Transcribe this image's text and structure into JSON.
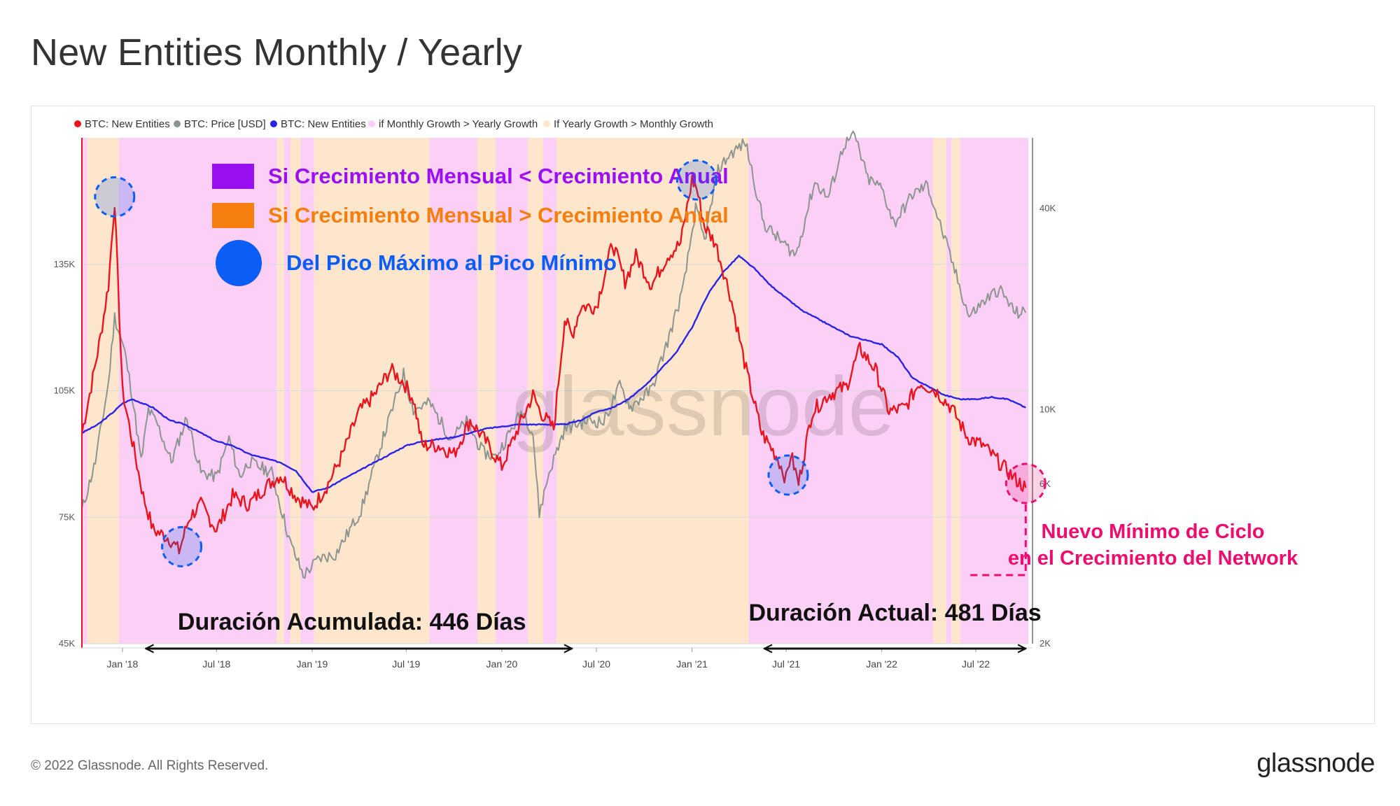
{
  "header": {
    "title": "New Entities Monthly / Yearly"
  },
  "footer": {
    "copyright": "© 2022 Glassnode. All Rights Reserved.",
    "logo": "glassnode"
  },
  "colors": {
    "new_entities_red": "#e8141e",
    "price_grey": "#8c9490",
    "new_entities_blue": "#2a22e6",
    "monthly_gt_yearly_pink": "#fbcff6",
    "yearly_gt_monthly_peach": "#fde6cc",
    "purple_label": "#9b10f2",
    "orange_label": "#f57e0f",
    "blue_label": "#0a5df5",
    "magenta_note": "#ee0c6e"
  },
  "chart_data": {
    "type": "line",
    "title": "New Entities Monthly / Yearly",
    "watermark": "glassnode",
    "legend": {
      "placement": "top-left",
      "entries": [
        {
          "label": "BTC: New Entities",
          "color": "#e8141e"
        },
        {
          "label": "BTC: Price [USD]",
          "color": "#8c9490"
        },
        {
          "label": "BTC: New Entities",
          "color": "#2a22e6"
        },
        {
          "label": "if Monthly Growth > Yearly Growth",
          "color": "#fbcff6"
        },
        {
          "label": "If Yearly Growth > Monthly Growth",
          "color": "#fde6cc"
        }
      ]
    },
    "x_axis": {
      "start": "2017-10-15",
      "end": "2022-10-10",
      "ticks": [
        {
          "date": "2018-01-01",
          "label": "Jan '18"
        },
        {
          "date": "2018-07-01",
          "label": "Jul '18"
        },
        {
          "date": "2019-01-01",
          "label": "Jan '19"
        },
        {
          "date": "2019-07-01",
          "label": "Jul '19"
        },
        {
          "date": "2020-01-01",
          "label": "Jan '20"
        },
        {
          "date": "2020-07-01",
          "label": "Jul '20"
        },
        {
          "date": "2021-01-01",
          "label": "Jan '21"
        },
        {
          "date": "2021-07-01",
          "label": "Jul '21"
        },
        {
          "date": "2022-01-01",
          "label": "Jan '22"
        },
        {
          "date": "2022-07-01",
          "label": "Jul '22"
        }
      ]
    },
    "y_left": {
      "range": [
        45000,
        165000
      ],
      "ticks": [
        {
          "value": 45000,
          "label": "45K"
        },
        {
          "value": 75000,
          "label": "75K"
        },
        {
          "value": 105000,
          "label": "105K"
        },
        {
          "value": 135000,
          "label": "135K"
        }
      ]
    },
    "y_right": {
      "scale": "log",
      "range": [
        2000,
        65000
      ],
      "ticks": [
        {
          "value": 2000,
          "label": "2K"
        },
        {
          "value": 6000,
          "label": "6K"
        },
        {
          "value": 10000,
          "label": "10K"
        },
        {
          "value": 40000,
          "label": "40K"
        }
      ]
    },
    "regime_bands": [
      {
        "start": "2017-10-15",
        "end": "2017-10-25",
        "regime": "monthly"
      },
      {
        "start": "2017-10-25",
        "end": "2017-12-25",
        "regime": "yearly"
      },
      {
        "start": "2017-12-25",
        "end": "2018-10-25",
        "regime": "monthly"
      },
      {
        "start": "2018-10-25",
        "end": "2018-11-08",
        "regime": "yearly"
      },
      {
        "start": "2018-11-08",
        "end": "2018-11-20",
        "regime": "monthly"
      },
      {
        "start": "2018-11-20",
        "end": "2018-12-10",
        "regime": "yearly"
      },
      {
        "start": "2018-12-10",
        "end": "2019-01-05",
        "regime": "monthly"
      },
      {
        "start": "2019-01-05",
        "end": "2019-08-15",
        "regime": "yearly"
      },
      {
        "start": "2019-08-15",
        "end": "2019-11-15",
        "regime": "monthly"
      },
      {
        "start": "2019-11-15",
        "end": "2019-12-20",
        "regime": "yearly"
      },
      {
        "start": "2019-12-20",
        "end": "2020-02-20",
        "regime": "monthly"
      },
      {
        "start": "2020-02-20",
        "end": "2020-03-20",
        "regime": "yearly"
      },
      {
        "start": "2020-03-20",
        "end": "2020-04-15",
        "regime": "monthly"
      },
      {
        "start": "2020-04-15",
        "end": "2021-04-20",
        "regime": "yearly"
      },
      {
        "start": "2021-04-20",
        "end": "2022-04-10",
        "regime": "monthly"
      },
      {
        "start": "2022-04-10",
        "end": "2022-05-05",
        "regime": "yearly"
      },
      {
        "start": "2022-05-05",
        "end": "2022-05-15",
        "regime": "monthly"
      },
      {
        "start": "2022-05-15",
        "end": "2022-06-01",
        "regime": "yearly"
      },
      {
        "start": "2022-06-01",
        "end": "2022-10-10",
        "regime": "monthly"
      }
    ],
    "series": [
      {
        "name": "BTC: New Entities",
        "axis": "left",
        "color": "#e8141e",
        "x": [
          "2017-10-15",
          "2017-11-05",
          "2017-11-20",
          "2017-12-05",
          "2017-12-17",
          "2018-01-01",
          "2018-01-20",
          "2018-02-10",
          "2018-03-01",
          "2018-04-01",
          "2018-04-20",
          "2018-05-10",
          "2018-06-01",
          "2018-07-01",
          "2018-08-01",
          "2018-09-01",
          "2018-10-01",
          "2018-11-01",
          "2018-12-01",
          "2019-01-01",
          "2019-02-01",
          "2019-03-01",
          "2019-04-01",
          "2019-05-01",
          "2019-06-01",
          "2019-06-26",
          "2019-07-15",
          "2019-08-01",
          "2019-09-01",
          "2019-10-01",
          "2019-11-01",
          "2019-12-01",
          "2020-01-01",
          "2020-02-01",
          "2020-03-01",
          "2020-03-15",
          "2020-04-10",
          "2020-05-01",
          "2020-05-15",
          "2020-06-01",
          "2020-07-01",
          "2020-08-01",
          "2020-08-25",
          "2020-09-15",
          "2020-10-15",
          "2020-11-15",
          "2020-12-10",
          "2021-01-01",
          "2021-01-10",
          "2021-01-25",
          "2021-02-15",
          "2021-03-15",
          "2021-04-15",
          "2021-05-15",
          "2021-06-15",
          "2021-07-01",
          "2021-07-10",
          "2021-07-25",
          "2021-08-20",
          "2021-09-20",
          "2021-10-25",
          "2021-11-20",
          "2021-12-20",
          "2022-01-15",
          "2022-02-15",
          "2022-03-15",
          "2022-04-15",
          "2022-05-15",
          "2022-06-15",
          "2022-07-15",
          "2022-08-15",
          "2022-09-15",
          "2022-10-05"
        ],
        "values": [
          95000,
          108000,
          118000,
          130000,
          150000,
          105000,
          93000,
          80000,
          72000,
          70000,
          67000,
          75000,
          78000,
          72000,
          80000,
          78000,
          82000,
          85000,
          80000,
          77000,
          83000,
          90000,
          100000,
          104000,
          110000,
          107000,
          103000,
          92000,
          92000,
          90000,
          98000,
          93000,
          87000,
          96000,
          104000,
          100000,
          96000,
          122000,
          118000,
          125000,
          125000,
          140000,
          131000,
          137000,
          130000,
          137000,
          140000,
          155000,
          153000,
          144000,
          140000,
          128000,
          110000,
          95000,
          89000,
          84000,
          90000,
          83000,
          100000,
          104000,
          106000,
          115000,
          110000,
          100000,
          101000,
          107000,
          105000,
          101000,
          94000,
          92000,
          88000,
          84000,
          82000
        ]
      },
      {
        "name": "BTC: Price [USD]",
        "axis": "right",
        "color": "#8c9490",
        "x": [
          "2017-10-15",
          "2017-11-10",
          "2017-12-05",
          "2017-12-17",
          "2018-01-05",
          "2018-01-20",
          "2018-02-06",
          "2018-02-20",
          "2018-03-10",
          "2018-04-05",
          "2018-05-05",
          "2018-06-01",
          "2018-07-01",
          "2018-07-25",
          "2018-08-15",
          "2018-09-01",
          "2018-10-15",
          "2018-11-20",
          "2018-12-15",
          "2019-01-15",
          "2019-02-15",
          "2019-04-05",
          "2019-05-15",
          "2019-06-26",
          "2019-07-15",
          "2019-08-15",
          "2019-09-25",
          "2019-10-25",
          "2019-11-25",
          "2019-12-20",
          "2020-02-10",
          "2020-03-01",
          "2020-03-13",
          "2020-04-01",
          "2020-05-01",
          "2020-06-15",
          "2020-07-15",
          "2020-08-15",
          "2020-09-05",
          "2020-10-15",
          "2020-11-15",
          "2020-12-15",
          "2021-01-08",
          "2021-01-25",
          "2021-02-20",
          "2021-03-15",
          "2021-04-14",
          "2021-05-19",
          "2021-06-20",
          "2021-07-20",
          "2021-08-25",
          "2021-09-20",
          "2021-10-20",
          "2021-11-10",
          "2021-12-05",
          "2022-01-01",
          "2022-01-25",
          "2022-03-01",
          "2022-03-30",
          "2022-05-12",
          "2022-06-18",
          "2022-07-15",
          "2022-08-15",
          "2022-09-15",
          "2022-10-05"
        ],
        "values": [
          5000,
          7000,
          12000,
          19000,
          15000,
          11000,
          7000,
          10000,
          9000,
          7000,
          9500,
          6500,
          6300,
          8200,
          6300,
          7000,
          6500,
          4000,
          3200,
          3600,
          3700,
          5000,
          8000,
          12800,
          10000,
          10500,
          8200,
          9200,
          7500,
          7200,
          10000,
          8500,
          4900,
          6500,
          8800,
          9300,
          9200,
          11800,
          10200,
          11500,
          16000,
          23000,
          40000,
          32000,
          52000,
          58000,
          63000,
          36000,
          32000,
          29000,
          48000,
          43000,
          62000,
          66000,
          49000,
          46000,
          36000,
          44000,
          47000,
          29000,
          19000,
          21000,
          23000,
          19500,
          19500
        ]
      },
      {
        "name": "BTC: New Entities",
        "axis": "left",
        "color": "#2a22e6",
        "x": [
          "2017-10-15",
          "2017-11-15",
          "2017-12-15",
          "2018-01-01",
          "2018-01-20",
          "2018-03-01",
          "2018-04-01",
          "2018-05-01",
          "2018-06-01",
          "2018-07-01",
          "2018-08-01",
          "2018-09-01",
          "2018-10-01",
          "2018-11-01",
          "2018-12-01",
          "2019-01-01",
          "2019-02-01",
          "2019-03-01",
          "2019-04-01",
          "2019-05-01",
          "2019-06-01",
          "2019-07-01",
          "2019-08-01",
          "2019-09-01",
          "2019-10-01",
          "2019-11-01",
          "2019-12-01",
          "2020-01-01",
          "2020-02-01",
          "2020-03-01",
          "2020-04-01",
          "2020-05-01",
          "2020-06-01",
          "2020-07-01",
          "2020-08-01",
          "2020-09-01",
          "2020-10-01",
          "2020-11-01",
          "2020-12-01",
          "2021-01-01",
          "2021-02-01",
          "2021-03-01",
          "2021-04-01",
          "2021-05-01",
          "2021-06-01",
          "2021-07-01",
          "2021-08-01",
          "2021-09-01",
          "2021-10-01",
          "2021-11-01",
          "2021-12-01",
          "2022-01-01",
          "2022-02-01",
          "2022-03-01",
          "2022-04-01",
          "2022-05-01",
          "2022-06-01",
          "2022-07-01",
          "2022-08-01",
          "2022-09-01",
          "2022-10-05"
        ],
        "values": [
          95000,
          97000,
          100000,
          102000,
          103000,
          101000,
          98000,
          97000,
          95000,
          93000,
          92000,
          90000,
          89000,
          88000,
          86000,
          81000,
          82000,
          84000,
          86000,
          88000,
          90000,
          92000,
          93000,
          93500,
          94000,
          95000,
          96000,
          96500,
          97000,
          97000,
          97000,
          97000,
          98000,
          100000,
          101000,
          103000,
          106000,
          110000,
          114000,
          120000,
          128000,
          133000,
          137000,
          134000,
          130000,
          127000,
          124000,
          122000,
          120000,
          118000,
          117000,
          116000,
          113000,
          108000,
          106000,
          104000,
          103000,
          103000,
          103500,
          103000,
          101000
        ]
      }
    ],
    "annotations": [
      {
        "type": "legend-box",
        "text": "Si Crecimiento Mensual < Crecimiento Anual",
        "color": "#9b10f2"
      },
      {
        "type": "legend-box",
        "text": "Si Crecimiento Mensual > Crecimiento Anual",
        "color": "#f57e0f"
      },
      {
        "type": "legend-dot",
        "text": "Del Pico Máximo al Pico Mínimo",
        "color": "#0a5df5"
      },
      {
        "type": "note",
        "lines": [
          "Nuevo Mínimo de Ciclo",
          "en el Crecimiento del Network"
        ],
        "color": "#ee0c6e"
      },
      {
        "type": "span",
        "text": "Duración Acumulada: 446 Días",
        "start": "2018-02-15",
        "end": "2020-05-15"
      },
      {
        "type": "span",
        "text": "Duración Actual: 481 Días",
        "start": "2021-05-20",
        "end": "2022-10-05"
      }
    ],
    "circles": [
      {
        "date": "2017-12-17",
        "value": 151000,
        "kind": "peak"
      },
      {
        "date": "2018-04-25",
        "value": 68000,
        "kind": "trough"
      },
      {
        "date": "2021-01-10",
        "value": 155000,
        "kind": "peak"
      },
      {
        "date": "2021-07-05",
        "value": 85000,
        "kind": "trough"
      },
      {
        "date": "2022-10-05",
        "value": 83000,
        "kind": "current"
      }
    ]
  }
}
